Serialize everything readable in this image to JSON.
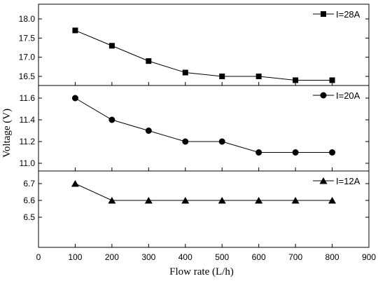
{
  "chart_data": {
    "type": "line",
    "xlabel": "Flow rate (L/h)",
    "ylabel": "Voltage (V)",
    "xlim": [
      0,
      900
    ],
    "x_ticks": [
      "0",
      "100",
      "200",
      "300",
      "400",
      "500",
      "600",
      "700",
      "800",
      "900"
    ],
    "x": [
      100,
      200,
      300,
      400,
      500,
      600,
      700,
      800
    ],
    "grid": false,
    "legend_position": "top-right",
    "panels": [
      {
        "name": "I=28A",
        "marker": "square",
        "ylim": [
          16.3,
          18.0
        ],
        "y_ticks": [
          "16.5",
          "17.0",
          "17.5",
          "18.0"
        ],
        "values": [
          17.7,
          17.3,
          16.9,
          16.6,
          16.5,
          16.5,
          16.4,
          16.4
        ]
      },
      {
        "name": "I=20A",
        "marker": "circle",
        "ylim": [
          11.0,
          11.7
        ],
        "y_ticks": [
          "11.0",
          "11.2",
          "11.4",
          "11.6"
        ],
        "values": [
          11.6,
          11.4,
          11.3,
          11.2,
          11.2,
          11.1,
          11.1,
          11.1
        ]
      },
      {
        "name": "I=12A",
        "marker": "triangle",
        "ylim": [
          6.5,
          6.75
        ],
        "y_ticks": [
          "6.5",
          "6.6",
          "6.7"
        ],
        "values": [
          6.7,
          6.6,
          6.6,
          6.6,
          6.6,
          6.6,
          6.6,
          6.6
        ]
      }
    ]
  }
}
